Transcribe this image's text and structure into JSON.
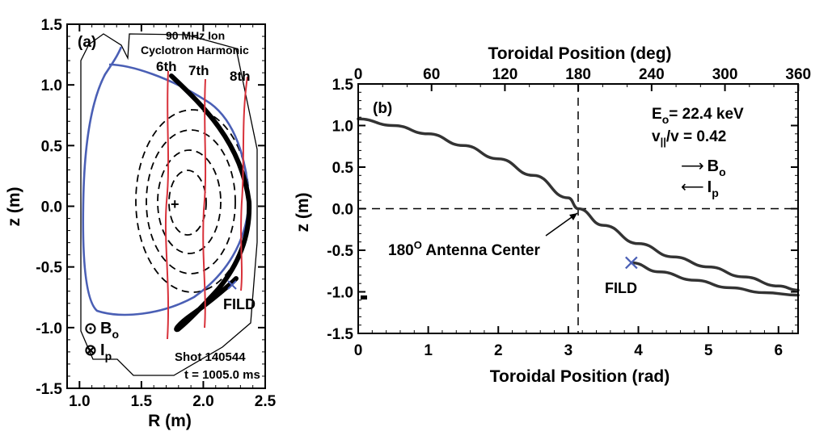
{
  "chart_data": [
    {
      "type": "line",
      "panel": "(a)",
      "xlabel": "R (m)",
      "ylabel": "z (m)",
      "xlim": [
        0.9,
        2.5
      ],
      "ylim": [
        -1.5,
        1.5
      ],
      "xticks": [
        "1.0",
        "1.5",
        "2.0",
        "2.5"
      ],
      "yticks": [
        "1.5",
        "1.0",
        "0.5",
        "0.0",
        "-0.5",
        "-1.0",
        "-1.5"
      ],
      "annotations": {
        "heading_line1": "90 MHz Ion",
        "heading_line2": "Cyclotron Harmonic",
        "harmonic_6": "6th",
        "harmonic_7": "7th",
        "harmonic_8": "8th",
        "fild": "FILD",
        "bo": "B",
        "bo_sub": "o",
        "ip": "I",
        "ip_sub": "p",
        "bo_symbol": "⊙",
        "ip_symbol": "⊗",
        "shot": "Shot 140544",
        "time": "t = 1005.0 ms",
        "center_mark": "+"
      },
      "resonances": [
        {
          "name": "6th",
          "R": 1.72
        },
        {
          "name": "7th",
          "R": 2.04
        },
        {
          "name": "8th",
          "R": 2.38
        }
      ],
      "magnetic_axis": {
        "R": 1.78,
        "z": 0.0
      },
      "fild_position": {
        "R": 2.27,
        "z": -0.65
      },
      "colors": {
        "separatrix": "#4a5fb5",
        "resonance": "#d8313a",
        "orbit": "#000000",
        "wall": "#000000"
      }
    },
    {
      "type": "line",
      "panel": "(b)",
      "xlabel": "Toroidal Position (rad)",
      "x2label": "Toroidal Position (deg)",
      "ylabel": "z (m)",
      "xlim": [
        0,
        6.28
      ],
      "ylim": [
        -1.5,
        1.5
      ],
      "xticks": [
        "0",
        "1",
        "2",
        "3",
        "4",
        "5",
        "6"
      ],
      "x2ticks": [
        "0",
        "60",
        "120",
        "180",
        "240",
        "300",
        "360"
      ],
      "yticks": [
        "1.5",
        "1.0",
        "0.5",
        "0.0",
        "-0.5",
        "-1.0",
        "-1.5"
      ],
      "annotations": {
        "energy_main": "E",
        "energy_sub": "o",
        "energy_value": "= 22.4 keV",
        "pitch_v": "v",
        "pitch_sub": "||",
        "pitch_value": "/v = 0.42",
        "bo_arrow": "⟶",
        "bo": "B",
        "bo_sub": "o",
        "ip_arrow": "⟵",
        "ip": "I",
        "ip_sub": "p",
        "antenna_num": "180",
        "antenna_deg": "O",
        "antenna_text": "Antenna Center",
        "fild": "FILD"
      },
      "series": [
        {
          "x": [
            0.0,
            0.5,
            1.0,
            1.5,
            2.0,
            2.5,
            3.0,
            3.14,
            3.5,
            4.0,
            4.5,
            5.0,
            5.5,
            6.0,
            6.28
          ],
          "y": [
            1.08,
            1.0,
            0.9,
            0.76,
            0.6,
            0.4,
            0.13,
            0.0,
            -0.2,
            -0.42,
            -0.58,
            -0.7,
            -0.82,
            -0.93,
            -0.98
          ]
        },
        {
          "x": [
            3.9,
            4.3,
            4.8,
            5.3,
            5.8,
            6.28
          ],
          "y": [
            -0.65,
            -0.76,
            -0.86,
            -0.95,
            -1.01,
            -1.04
          ]
        }
      ],
      "fild_marker": {
        "x": 3.9,
        "y": -0.65
      },
      "dashed_lines": {
        "vertical_x": 3.14,
        "horizontal_y": 0.0
      },
      "colors": {
        "curve": "#333333",
        "fild_marker": "#4a5fb5"
      }
    }
  ]
}
